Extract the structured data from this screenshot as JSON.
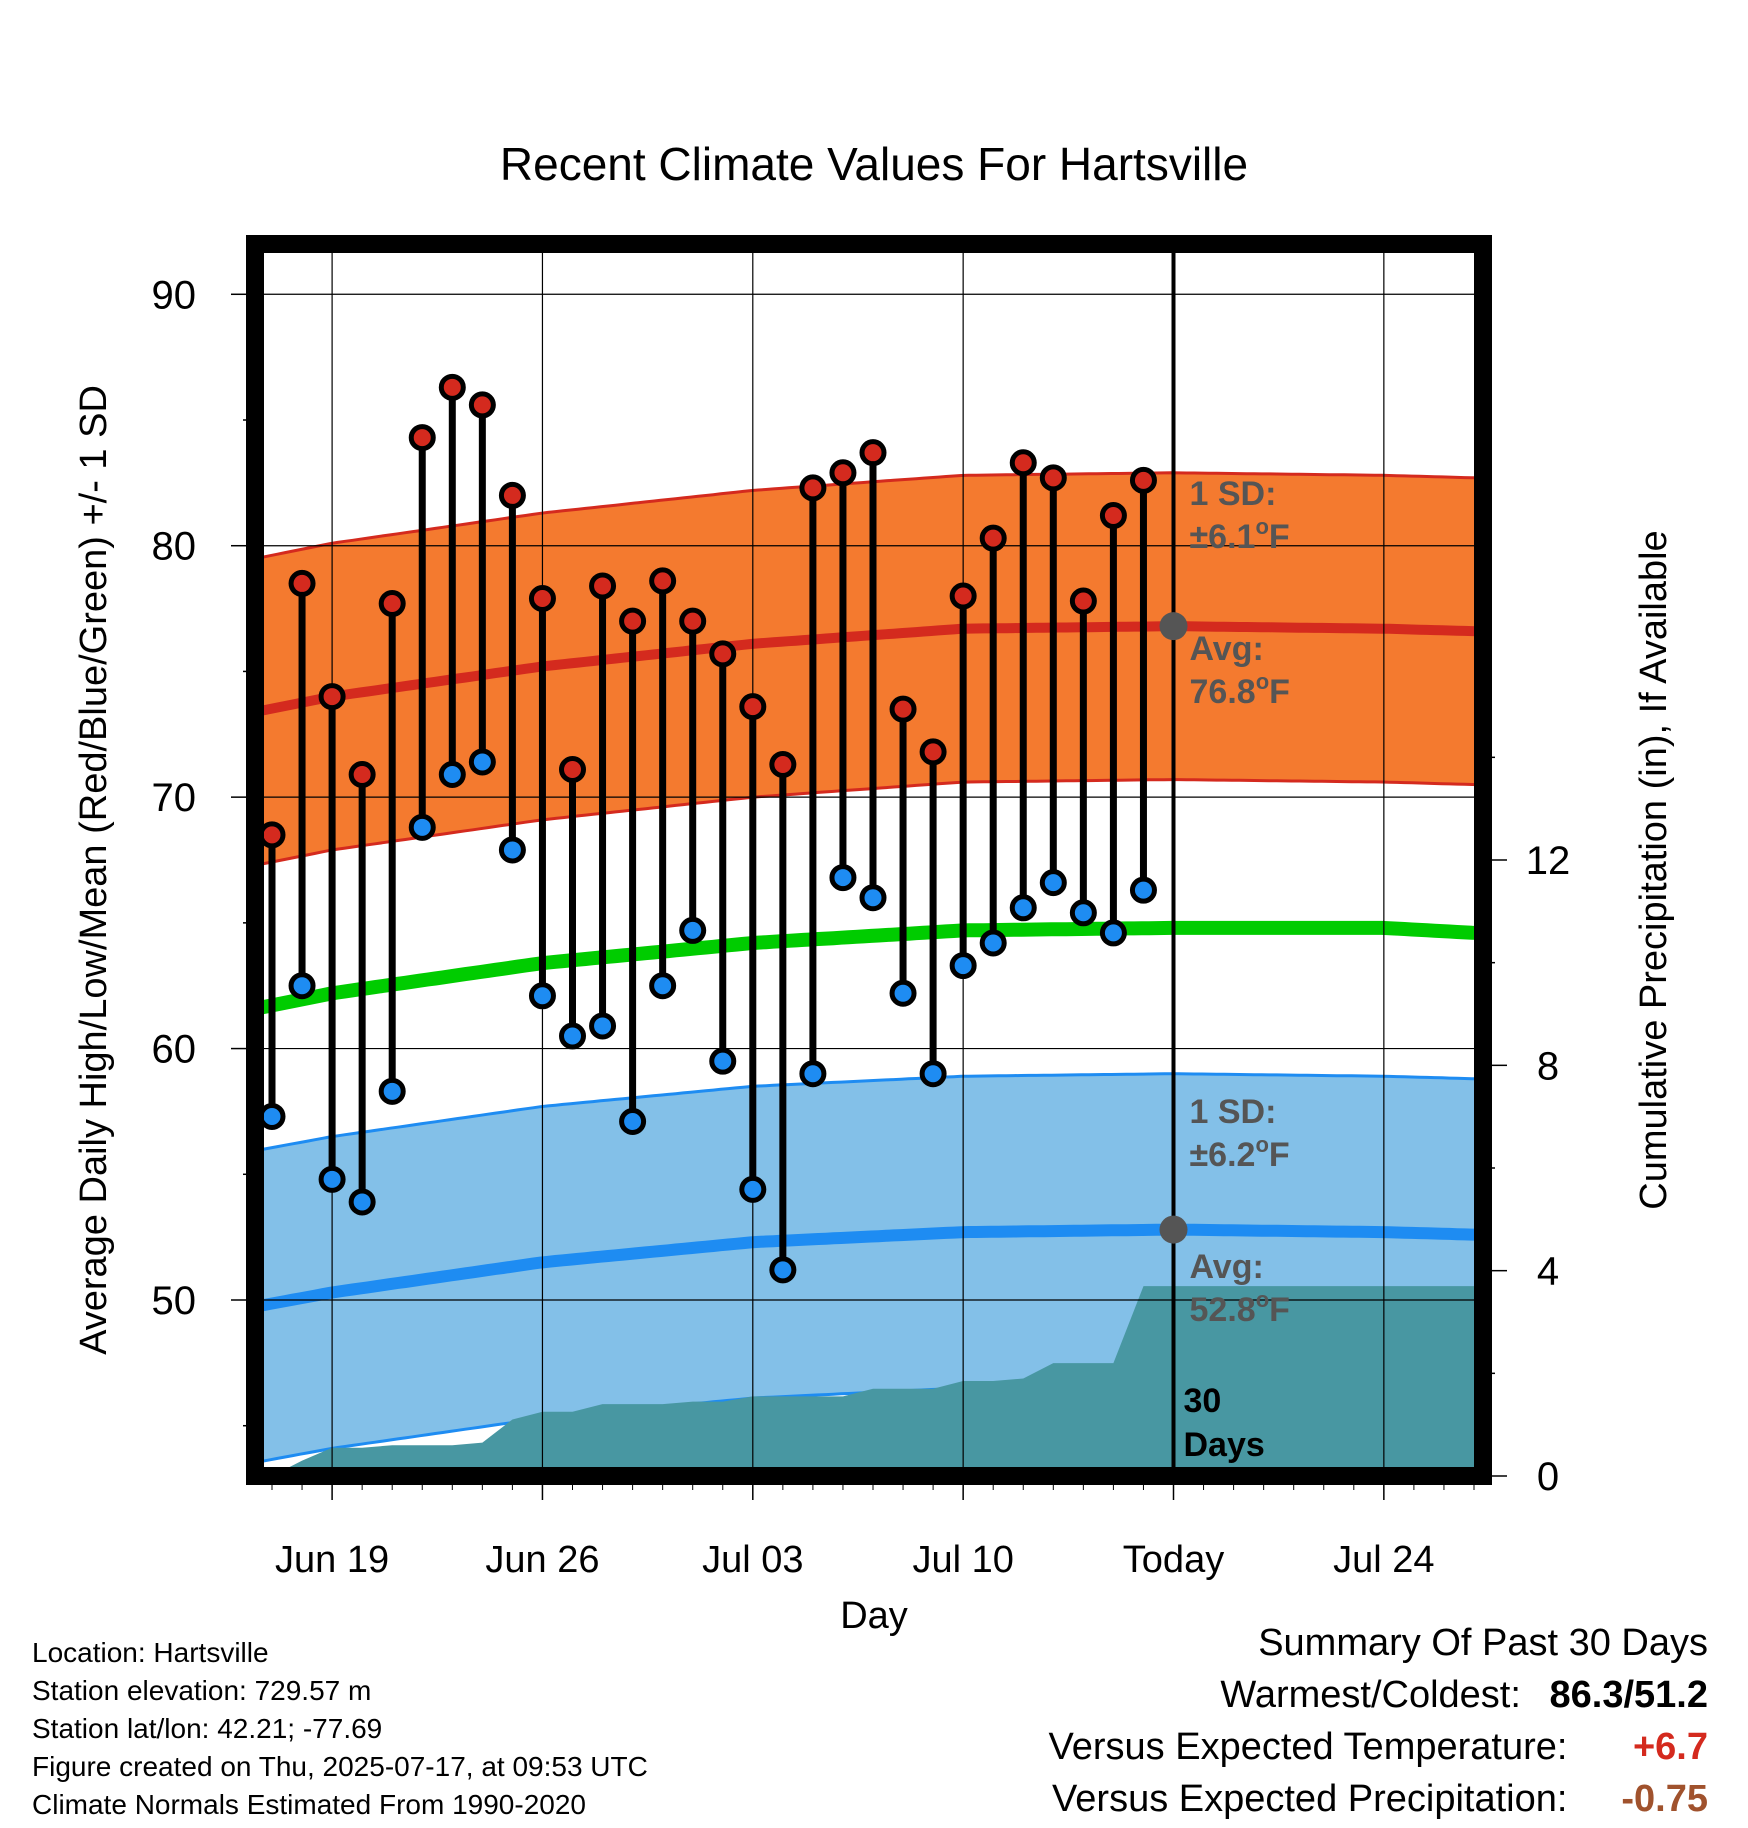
{
  "chart_data": {
    "type": "line",
    "title": "Recent Climate Values For Hartsville",
    "xlabel": "Day",
    "ylabel": "Average Daily High/Low/Mean (Red/Blue/Green) +/- 1 SD",
    "y2label": "Cumulative Precipitation (in), If Available",
    "ylim": [
      43,
      92
    ],
    "y2lim": [
      0,
      24
    ],
    "yticks": [
      50,
      60,
      70,
      80,
      90
    ],
    "y2ticks": [
      0,
      4,
      8,
      12
    ],
    "xlim": [
      -3.4,
      54.3
    ],
    "x_ticks": [
      {
        "day": 2,
        "label": "Jun 19"
      },
      {
        "day": 9,
        "label": "Jun 26"
      },
      {
        "day": 16,
        "label": "Jul 03"
      },
      {
        "day": 23,
        "label": "Jul 10"
      },
      {
        "day": 30,
        "label": "Today"
      },
      {
        "day": 37,
        "label": "Jul 24"
      }
    ],
    "today_day": 30,
    "grid": true,
    "days_since_jun17": [
      0,
      1,
      2,
      3,
      4,
      5,
      6,
      7,
      8,
      9,
      10,
      11,
      12,
      13,
      14,
      15,
      16,
      17,
      18,
      19,
      20,
      21,
      22,
      23,
      24,
      25,
      26,
      27,
      28,
      29
    ],
    "observed_high": [
      68.5,
      78.5,
      74.0,
      70.9,
      77.7,
      84.3,
      86.3,
      85.6,
      82.0,
      77.9,
      71.1,
      78.4,
      77.0,
      78.6,
      77.0,
      75.7,
      73.6,
      71.3,
      82.3,
      82.9,
      83.7,
      73.5,
      71.8,
      78.0,
      80.3,
      83.3,
      82.7,
      77.8,
      81.2,
      82.6
    ],
    "observed_low": [
      57.3,
      62.5,
      54.8,
      53.9,
      58.3,
      68.8,
      70.9,
      71.4,
      67.9,
      62.1,
      60.5,
      60.9,
      57.1,
      62.5,
      64.7,
      59.5,
      54.4,
      51.2,
      59.0,
      66.8,
      66.0,
      62.2,
      59.0,
      63.3,
      64.2,
      65.6,
      66.6,
      65.4,
      64.6,
      66.3
    ],
    "normal_high": {
      "days": [
        -3,
        2,
        9,
        16,
        23,
        30,
        37,
        40
      ],
      "values": [
        72.8,
        74.0,
        75.2,
        76.1,
        76.7,
        76.8,
        76.7,
        76.6
      ],
      "sd": 6.1,
      "color": "#D42A1E",
      "band_color": "#F47A2F"
    },
    "normal_low": {
      "days": [
        -3,
        2,
        9,
        16,
        23,
        30,
        37,
        40
      ],
      "values": [
        49.2,
        50.3,
        51.5,
        52.3,
        52.7,
        52.8,
        52.7,
        52.6
      ],
      "sd": 6.2,
      "color": "#1E8CF2",
      "band_color": "#83C0E8"
    },
    "normal_mean": {
      "days": [
        -3,
        2,
        9,
        16,
        23,
        30,
        37,
        40
      ],
      "values": [
        61.0,
        62.2,
        63.4,
        64.2,
        64.7,
        64.8,
        64.8,
        64.6
      ],
      "color": "#00CC00"
    },
    "precip": {
      "days": [
        -3,
        0,
        1,
        2,
        3,
        4,
        5,
        6,
        7,
        8,
        9,
        10,
        11,
        12,
        13,
        14,
        15,
        16,
        17,
        18,
        19,
        20,
        21,
        22,
        23,
        24,
        25,
        26,
        27,
        28,
        29,
        30,
        31,
        40
      ],
      "values": [
        0,
        0,
        0.3,
        0.55,
        0.55,
        0.6,
        0.6,
        0.6,
        0.65,
        1.1,
        1.25,
        1.25,
        1.4,
        1.4,
        1.4,
        1.45,
        1.45,
        1.55,
        1.55,
        1.55,
        1.55,
        1.7,
        1.7,
        1.7,
        1.85,
        1.85,
        1.9,
        2.2,
        2.2,
        2.2,
        3.7,
        3.7,
        3.7,
        3.7
      ],
      "color": "#4897A2"
    },
    "annotations": {
      "high_sd": "1 SD:",
      "high_sd_val": "±6.1",
      "high_avg": "Avg:",
      "high_avg_val": "76.8",
      "low_sd": "1 SD:",
      "low_sd_val": "±6.2",
      "low_avg": "Avg:",
      "low_avg_val": "52.8",
      "deg": "o",
      "unit": "F",
      "days_num": "30",
      "days_word": "Days"
    }
  },
  "info": {
    "location": "Location: Hartsville",
    "elevation": "Station elevation: 729.57 m",
    "latlon": "Station lat/lon: 42.21; -77.69",
    "created": "Figure created on Thu, 2025-07-17, at 09:53 UTC",
    "normals": "Climate Normals Estimated From 1990-2020"
  },
  "summary": {
    "heading": "Summary Of Past 30 Days",
    "warm_cold_label": "Warmest/Coldest:",
    "warmest": "86.3",
    "slash": "/",
    "coldest": "51.2",
    "temp_label": "Versus Expected Temperature:",
    "temp_value": "+6.7",
    "temp_color": "#D42A1E",
    "precip_label": "Versus Expected Precipitation:",
    "precip_value": "-0.75",
    "precip_color": "#A0522D"
  }
}
